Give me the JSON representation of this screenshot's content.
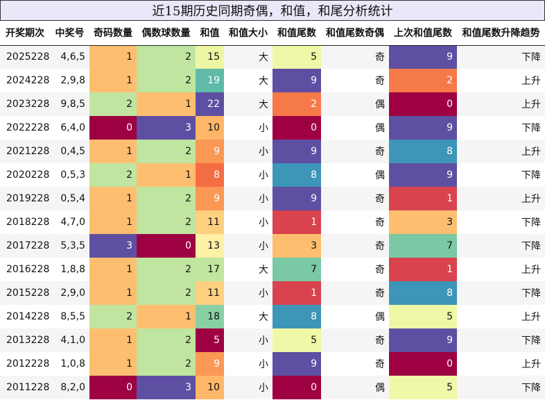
{
  "title": "近15期历史同期奇偶，和值，和尾分析统计",
  "columns": [
    "开奖期次",
    "中奖号",
    "奇码数量",
    "偶数球数量",
    "和值",
    "和值大小",
    "和值尾数",
    "和值尾数奇偶",
    "上次和值尾数",
    "和值尾数升降趋势"
  ],
  "rows": [
    {
      "period": "2025228",
      "numbers": "4,6,5",
      "odd": "1",
      "even": "2",
      "sum": "15",
      "size": "大",
      "tail": "5",
      "tail_parity": "奇",
      "prev_tail": "9",
      "trend": "下降"
    },
    {
      "period": "2024228",
      "numbers": "2,9,8",
      "odd": "1",
      "even": "2",
      "sum": "19",
      "size": "大",
      "tail": "9",
      "tail_parity": "奇",
      "prev_tail": "2",
      "trend": "上升"
    },
    {
      "period": "2023228",
      "numbers": "9,8,5",
      "odd": "2",
      "even": "1",
      "sum": "22",
      "size": "大",
      "tail": "2",
      "tail_parity": "偶",
      "prev_tail": "0",
      "trend": "上升"
    },
    {
      "period": "2022228",
      "numbers": "6,4,0",
      "odd": "0",
      "even": "3",
      "sum": "10",
      "size": "小",
      "tail": "0",
      "tail_parity": "偶",
      "prev_tail": "9",
      "trend": "下降"
    },
    {
      "period": "2021228",
      "numbers": "0,4,5",
      "odd": "1",
      "even": "2",
      "sum": "9",
      "size": "小",
      "tail": "9",
      "tail_parity": "奇",
      "prev_tail": "8",
      "trend": "上升"
    },
    {
      "period": "2020228",
      "numbers": "0,5,3",
      "odd": "2",
      "even": "1",
      "sum": "8",
      "size": "小",
      "tail": "8",
      "tail_parity": "偶",
      "prev_tail": "9",
      "trend": "下降"
    },
    {
      "period": "2019228",
      "numbers": "0,5,4",
      "odd": "1",
      "even": "2",
      "sum": "9",
      "size": "小",
      "tail": "9",
      "tail_parity": "奇",
      "prev_tail": "1",
      "trend": "上升"
    },
    {
      "period": "2018228",
      "numbers": "4,7,0",
      "odd": "1",
      "even": "2",
      "sum": "11",
      "size": "小",
      "tail": "1",
      "tail_parity": "奇",
      "prev_tail": "3",
      "trend": "下降"
    },
    {
      "period": "2017228",
      "numbers": "5,3,5",
      "odd": "3",
      "even": "0",
      "sum": "13",
      "size": "小",
      "tail": "3",
      "tail_parity": "奇",
      "prev_tail": "7",
      "trend": "下降"
    },
    {
      "period": "2016228",
      "numbers": "1,8,8",
      "odd": "1",
      "even": "2",
      "sum": "17",
      "size": "大",
      "tail": "7",
      "tail_parity": "奇",
      "prev_tail": "1",
      "trend": "上升"
    },
    {
      "period": "2015228",
      "numbers": "2,9,0",
      "odd": "1",
      "even": "2",
      "sum": "11",
      "size": "小",
      "tail": "1",
      "tail_parity": "奇",
      "prev_tail": "8",
      "trend": "下降"
    },
    {
      "period": "2014228",
      "numbers": "8,5,5",
      "odd": "2",
      "even": "1",
      "sum": "18",
      "size": "大",
      "tail": "8",
      "tail_parity": "偶",
      "prev_tail": "5",
      "trend": "上升"
    },
    {
      "period": "2013228",
      "numbers": "4,1,0",
      "odd": "1",
      "even": "2",
      "sum": "5",
      "size": "小",
      "tail": "5",
      "tail_parity": "奇",
      "prev_tail": "9",
      "trend": "下降"
    },
    {
      "period": "2012228",
      "numbers": "1,0,8",
      "odd": "1",
      "even": "2",
      "sum": "9",
      "size": "小",
      "tail": "9",
      "tail_parity": "奇",
      "prev_tail": "0",
      "trend": "上升"
    },
    {
      "period": "2011228",
      "numbers": "8,2,0",
      "odd": "0",
      "even": "3",
      "sum": "10",
      "size": "小",
      "tail": "0",
      "tail_parity": "偶",
      "prev_tail": "5",
      "trend": "下降"
    }
  ],
  "colors": {
    "odd": {
      "0": "#9e0142",
      "1": "#fdbf6f",
      "2": "#bfe5a0",
      "3": "#5e4fa2"
    },
    "even": {
      "0": "#9e0142",
      "1": "#fdbf6f",
      "2": "#bfe5a0",
      "3": "#5e4fa2"
    },
    "sum": {
      "5": "#9e0142",
      "8": "#f46d43",
      "9": "#fa9856",
      "10": "#fdb768",
      "11": "#fdd080",
      "13": "#fef0a5",
      "15": "#edf7a3",
      "17": "#c1e6a0",
      "18": "#89d0a4",
      "19": "#5fbaa8",
      "22": "#5e4fa2"
    },
    "tail": {
      "0": "#9e0142",
      "1": "#d8434e",
      "2": "#f67a49",
      "3": "#fdbf6f",
      "5": "#eff8a6",
      "7": "#79c9a4",
      "8": "#3d95b8",
      "9": "#5e4fa2"
    },
    "prev_tail": {
      "0": "#9e0142",
      "1": "#d8434e",
      "2": "#f67a49",
      "3": "#fdbf6f",
      "5": "#eff8a6",
      "7": "#79c9a4",
      "8": "#3d95b8",
      "9": "#5e4fa2"
    }
  },
  "dark_colors": [
    "#9e0142",
    "#5e4fa2",
    "#3d95b8",
    "#d8434e",
    "#f46d43",
    "#f67a49",
    "#fa9856",
    "#5fbaa8"
  ]
}
